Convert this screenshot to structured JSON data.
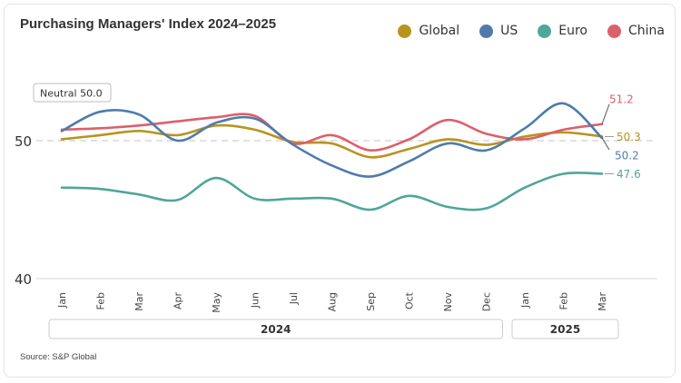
{
  "title": "Purchasing Managers' Index 2024–2025",
  "source": "Source: S&P Global",
  "chart_data": {
    "type": "line",
    "title": "Purchasing Managers' Index 2024–2025",
    "xlabel": "",
    "ylabel": "",
    "categories": [
      "Jan",
      "Feb",
      "Mar",
      "Apr",
      "May",
      "Jun",
      "Jul",
      "Aug",
      "Sep",
      "Oct",
      "Nov",
      "Dec",
      "Jan",
      "Feb",
      "Mar"
    ],
    "groups": [
      {
        "label": "2024",
        "from": 0,
        "to": 11
      },
      {
        "label": "2025",
        "from": 12,
        "to": 14
      }
    ],
    "ylim": [
      40,
      54
    ],
    "yticks": [
      {
        "value": 40,
        "label": "40"
      },
      {
        "value": 50,
        "label": "50"
      }
    ],
    "reference_line": {
      "value": 50,
      "label": "Neutral 50.0"
    },
    "grid": true,
    "legend_position": "top-right",
    "series": [
      {
        "name": "Global",
        "color": "#b8941f",
        "values": [
          50.1,
          50.4,
          50.7,
          50.4,
          51.1,
          50.8,
          49.9,
          49.8,
          48.8,
          49.4,
          50.1,
          49.7,
          50.3,
          50.6,
          50.3
        ],
        "end_label": "50.3"
      },
      {
        "name": "US",
        "color": "#4f7bac",
        "values": [
          50.7,
          52.1,
          51.9,
          50.0,
          51.3,
          51.6,
          49.7,
          48.2,
          47.4,
          48.5,
          49.8,
          49.3,
          50.9,
          52.7,
          50.2
        ],
        "end_label": "50.2"
      },
      {
        "name": "Euro",
        "color": "#4fa69b",
        "values": [
          46.6,
          46.5,
          46.1,
          45.7,
          47.3,
          45.8,
          45.8,
          45.8,
          45.0,
          46.0,
          45.2,
          45.1,
          46.6,
          47.6,
          47.6
        ],
        "end_label": "47.6"
      },
      {
        "name": "China",
        "color": "#dd5f6a",
        "values": [
          50.8,
          50.9,
          51.1,
          51.4,
          51.7,
          51.8,
          49.8,
          50.4,
          49.3,
          50.1,
          51.5,
          50.5,
          50.1,
          50.8,
          51.2
        ],
        "end_label": "51.2"
      }
    ]
  }
}
